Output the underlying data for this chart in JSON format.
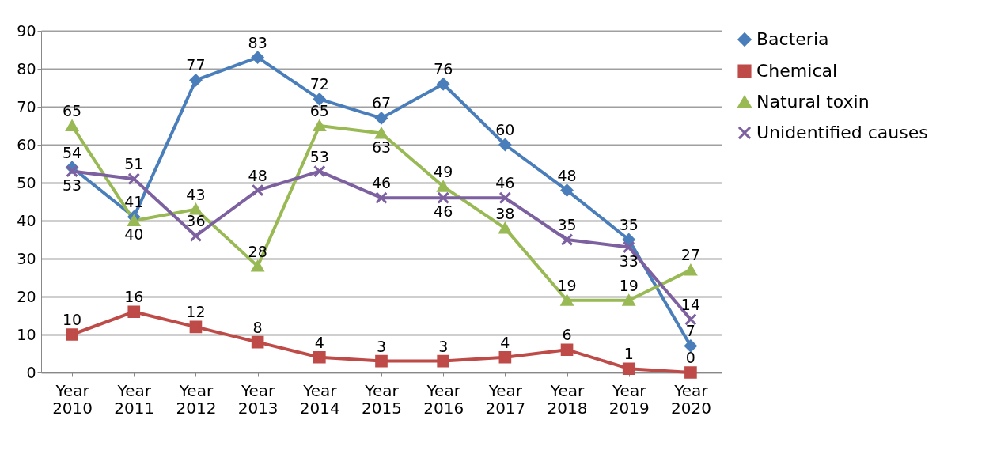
{
  "chart_data": {
    "type": "line",
    "categories": [
      "Year 2010",
      "Year 2011",
      "Year 2012",
      "Year 2013",
      "Year 2014",
      "Year 2015",
      "Year 2016",
      "Year 2017",
      "Year 2018",
      "Year 2019",
      "Year 2020"
    ],
    "series": [
      {
        "name": "Bacteria",
        "color": "#4a7ebb",
        "marker": "diamond",
        "values": [
          54,
          41,
          77,
          83,
          72,
          67,
          76,
          60,
          48,
          35,
          7
        ]
      },
      {
        "name": "Chemical",
        "color": "#be4b48",
        "marker": "square",
        "values": [
          10,
          16,
          12,
          8,
          4,
          3,
          3,
          4,
          6,
          1,
          0
        ]
      },
      {
        "name": "Natural toxin",
        "color": "#98b954",
        "marker": "triangle",
        "values": [
          65,
          40,
          43,
          28,
          65,
          63,
          49,
          38,
          19,
          19,
          27
        ]
      },
      {
        "name": "Unidentified causes",
        "color": "#7d60a0",
        "marker": "cross",
        "values": [
          53,
          51,
          36,
          48,
          53,
          46,
          46,
          46,
          35,
          33,
          14
        ]
      }
    ],
    "ylim": [
      0,
      90
    ],
    "yticks": [
      0,
      10,
      20,
      30,
      40,
      50,
      60,
      70,
      80,
      90
    ],
    "grid": "y",
    "legend": "right",
    "data_labels": true
  }
}
